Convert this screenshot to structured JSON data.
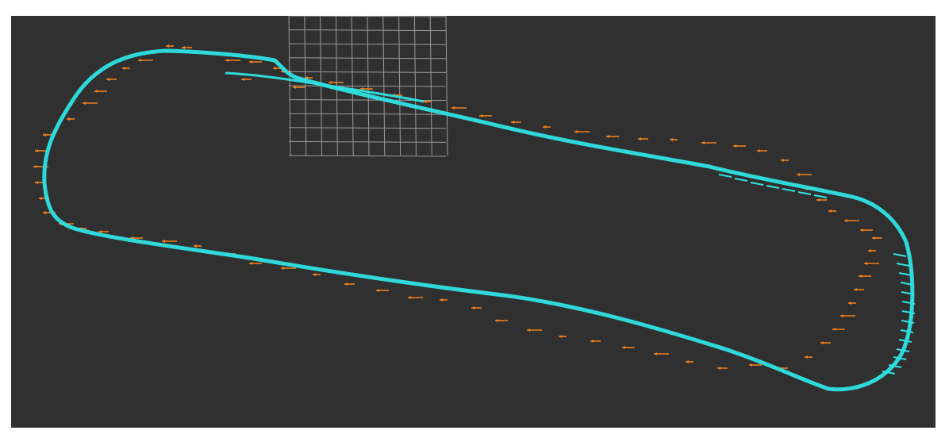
{
  "viewer": {
    "background_color": "#303030",
    "frame_color": "#ffffff"
  },
  "grid": {
    "color": "#9a9a9a",
    "rows": 10,
    "columns": 10
  },
  "trajectory": {
    "color": "#2fe3e3"
  },
  "pose_arrows": {
    "color": "#f07f1c"
  }
}
